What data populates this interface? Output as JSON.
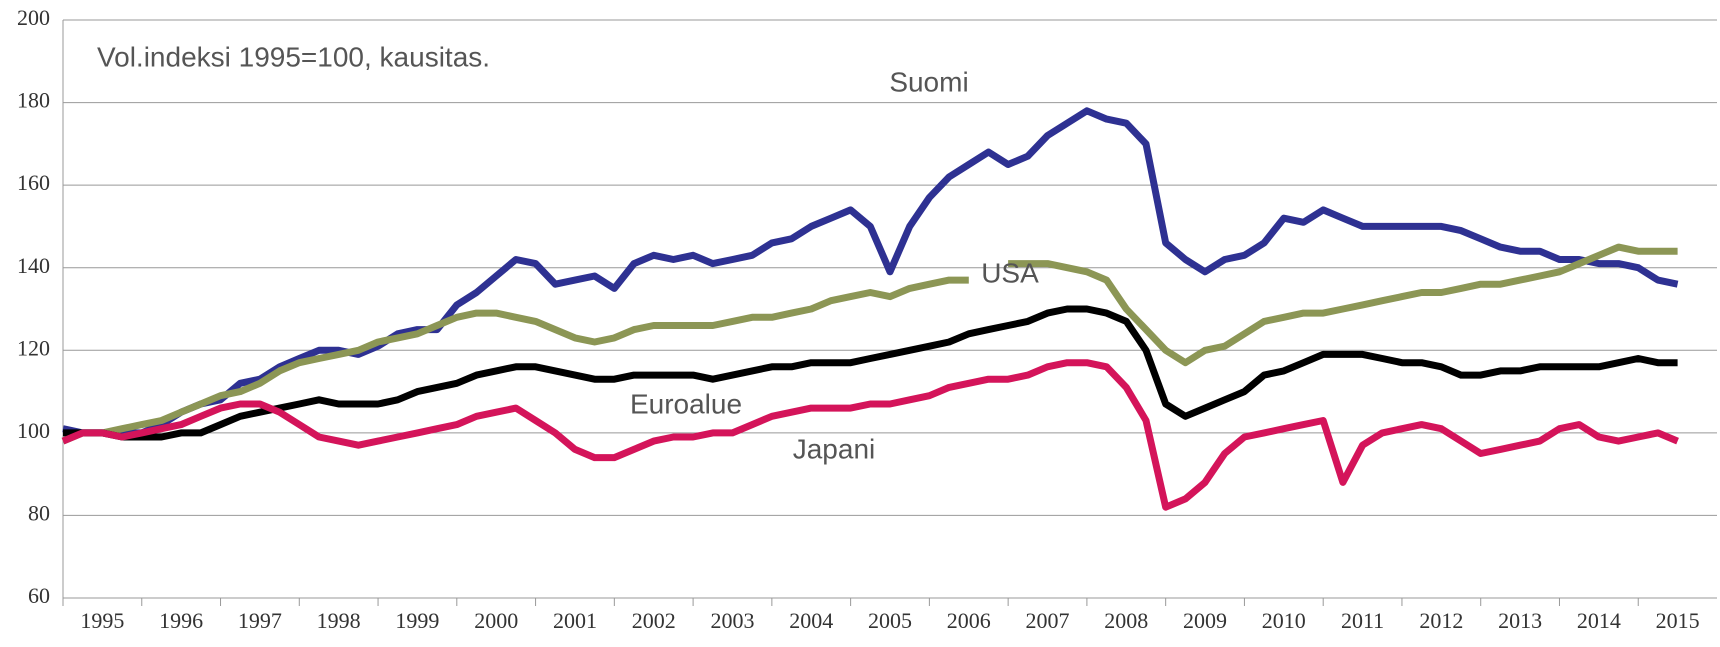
{
  "chart_data": {
    "type": "line",
    "title": "Vol.indeksi 1995=100, kausitas.",
    "x": [
      1995,
      1995.25,
      1995.5,
      1995.75,
      1996,
      1996.25,
      1996.5,
      1996.75,
      1997,
      1997.25,
      1997.5,
      1997.75,
      1998,
      1998.25,
      1998.5,
      1998.75,
      1999,
      1999.25,
      1999.5,
      1999.75,
      2000,
      2000.25,
      2000.5,
      2000.75,
      2001,
      2001.25,
      2001.5,
      2001.75,
      2002,
      2002.25,
      2002.5,
      2002.75,
      2003,
      2003.25,
      2003.5,
      2003.75,
      2004,
      2004.25,
      2004.5,
      2004.75,
      2005,
      2005.25,
      2005.5,
      2005.75,
      2006,
      2006.25,
      2006.5,
      2006.75,
      2007,
      2007.25,
      2007.5,
      2007.75,
      2008,
      2008.25,
      2008.5,
      2008.75,
      2009,
      2009.25,
      2009.5,
      2009.75,
      2010,
      2010.25,
      2010.5,
      2010.75,
      2011,
      2011.25,
      2011.5,
      2011.75,
      2012,
      2012.25,
      2012.5,
      2012.75,
      2013,
      2013.25,
      2013.5,
      2013.75,
      2014,
      2014.25,
      2014.5,
      2014.75,
      2015,
      2015.25,
      2015.5
    ],
    "series": [
      {
        "name": "Suomi",
        "color": "#2e3192",
        "values": [
          101,
          100,
          100,
          100,
          100,
          102,
          105,
          107,
          108,
          112,
          113,
          116,
          118,
          120,
          120,
          119,
          121,
          124,
          125,
          125,
          131,
          134,
          138,
          142,
          141,
          136,
          137,
          138,
          135,
          141,
          143,
          142,
          143,
          141,
          142,
          143,
          146,
          147,
          150,
          152,
          154,
          150,
          139,
          150,
          157,
          162,
          165,
          168,
          165,
          167,
          172,
          175,
          178,
          176,
          175,
          170,
          146,
          142,
          139,
          142,
          143,
          146,
          152,
          151,
          154,
          152,
          150,
          150,
          150,
          150,
          150,
          149,
          147,
          145,
          144,
          144,
          142,
          142,
          141,
          141,
          140,
          137,
          136
        ]
      },
      {
        "name": "USA",
        "color": "#8c9655",
        "values": [
          98,
          100,
          100,
          101,
          102,
          103,
          105,
          107,
          109,
          110,
          112,
          115,
          117,
          118,
          119,
          120,
          122,
          123,
          124,
          126,
          128,
          129,
          129,
          128,
          127,
          125,
          123,
          122,
          123,
          125,
          126,
          126,
          126,
          126,
          127,
          128,
          128,
          129,
          130,
          132,
          133,
          134,
          133,
          135,
          136,
          137,
          137,
          null,
          141,
          141,
          141,
          140,
          139,
          137,
          130,
          125,
          120,
          117,
          120,
          121,
          124,
          127,
          128,
          129,
          129,
          130,
          131,
          132,
          133,
          134,
          134,
          135,
          136,
          136,
          137,
          138,
          139,
          141,
          143,
          145,
          144,
          144,
          144
        ]
      },
      {
        "name": "Euroalue",
        "color": "#000000",
        "values": [
          100,
          100,
          100,
          99,
          99,
          99,
          100,
          100,
          102,
          104,
          105,
          106,
          107,
          108,
          107,
          107,
          107,
          108,
          110,
          111,
          112,
          114,
          115,
          116,
          116,
          115,
          114,
          113,
          113,
          114,
          114,
          114,
          114,
          113,
          114,
          115,
          116,
          116,
          117,
          117,
          117,
          118,
          119,
          120,
          121,
          122,
          124,
          125,
          126,
          127,
          129,
          130,
          130,
          129,
          127,
          120,
          107,
          104,
          106,
          108,
          110,
          114,
          115,
          117,
          119,
          119,
          119,
          118,
          117,
          117,
          116,
          114,
          114,
          115,
          115,
          116,
          116,
          116,
          116,
          117,
          118,
          117,
          117
        ]
      },
      {
        "name": "Japani",
        "color": "#d4145a",
        "values": [
          98,
          100,
          100,
          99,
          100,
          101,
          102,
          104,
          106,
          107,
          107,
          105,
          102,
          99,
          98,
          97,
          98,
          99,
          100,
          101,
          102,
          104,
          105,
          106,
          103,
          100,
          96,
          94,
          94,
          96,
          98,
          99,
          99,
          100,
          100,
          102,
          104,
          105,
          106,
          106,
          106,
          107,
          107,
          108,
          109,
          111,
          112,
          113,
          113,
          114,
          116,
          117,
          117,
          116,
          111,
          103,
          82,
          84,
          88,
          95,
          99,
          100,
          101,
          102,
          103,
          88,
          97,
          100,
          101,
          102,
          101,
          98,
          95,
          96,
          97,
          98,
          101,
          102,
          99,
          98,
          99,
          100,
          98
        ]
      }
    ],
    "xlim": [
      1995,
      2016
    ],
    "xticks": [
      1995,
      1996,
      1997,
      1998,
      1999,
      2000,
      2001,
      2002,
      2003,
      2004,
      2005,
      2006,
      2007,
      2008,
      2009,
      2010,
      2011,
      2012,
      2013,
      2014,
      2015
    ],
    "ylim": [
      60,
      200
    ],
    "yticks": [
      60,
      80,
      100,
      120,
      140,
      160,
      180,
      200
    ],
    "grid": true
  }
}
